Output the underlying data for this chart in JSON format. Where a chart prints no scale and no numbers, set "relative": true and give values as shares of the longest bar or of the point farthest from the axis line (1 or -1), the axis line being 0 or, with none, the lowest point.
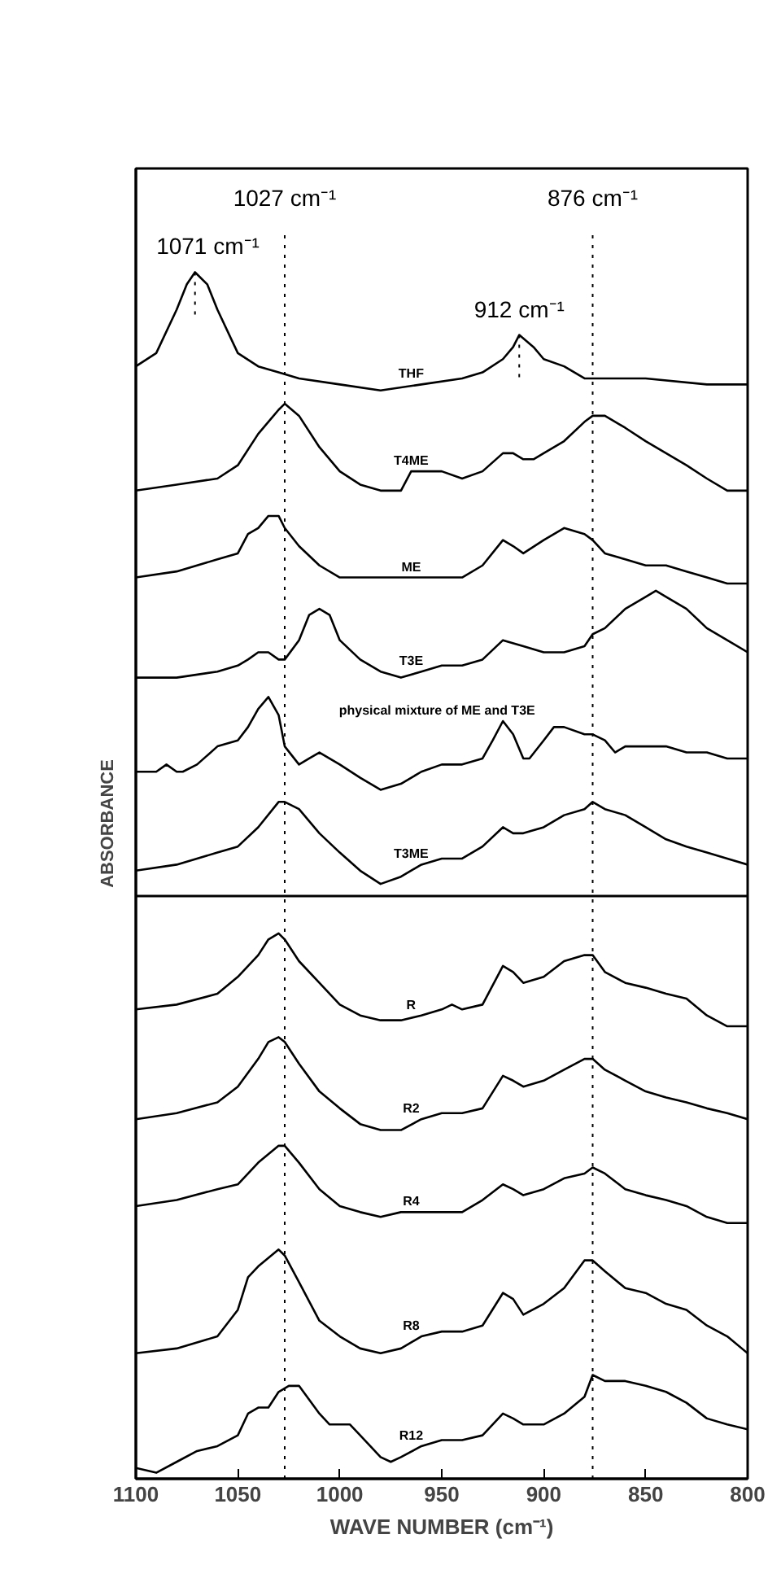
{
  "chart_data": {
    "type": "line",
    "relative": true,
    "xlabel": "WAVE NUMBER (cm⁻¹)",
    "ylabel": "ABSORBANCE",
    "xlim": [
      1100,
      800
    ],
    "xticks": [
      1100,
      1050,
      1000,
      950,
      900,
      850,
      800
    ],
    "series": [
      {
        "name": "THF",
        "color": "#000000",
        "x": [
          1100,
          1090,
          1080,
          1075,
          1071,
          1065,
          1060,
          1050,
          1040,
          1030,
          1020,
          1000,
          980,
          960,
          940,
          930,
          920,
          915,
          912,
          905,
          900,
          890,
          880,
          870,
          850,
          820,
          800
        ],
        "values": [
          0.922,
          0.933,
          0.969,
          0.99,
          1.0,
          0.99,
          0.969,
          0.933,
          0.922,
          0.917,
          0.912,
          0.907,
          0.902,
          0.907,
          0.912,
          0.917,
          0.928,
          0.938,
          0.948,
          0.938,
          0.928,
          0.922,
          0.912,
          0.912,
          0.912,
          0.907,
          0.907
        ]
      },
      {
        "name": "T4ME",
        "color": "#000000",
        "x": [
          1100,
          1080,
          1060,
          1050,
          1040,
          1030,
          1027,
          1020,
          1010,
          1000,
          990,
          980,
          970,
          965,
          960,
          950,
          940,
          930,
          920,
          915,
          910,
          905,
          900,
          890,
          880,
          876,
          870,
          860,
          850,
          840,
          830,
          820,
          810,
          800
        ],
        "values": [
          0.819,
          0.824,
          0.829,
          0.84,
          0.866,
          0.886,
          0.891,
          0.881,
          0.855,
          0.835,
          0.824,
          0.819,
          0.819,
          0.835,
          0.835,
          0.835,
          0.829,
          0.835,
          0.85,
          0.85,
          0.845,
          0.845,
          0.85,
          0.86,
          0.876,
          0.881,
          0.881,
          0.871,
          0.86,
          0.85,
          0.84,
          0.829,
          0.819,
          0.819
        ]
      },
      {
        "name": "ME",
        "color": "#000000",
        "x": [
          1100,
          1080,
          1060,
          1050,
          1045,
          1040,
          1035,
          1030,
          1027,
          1020,
          1010,
          1000,
          980,
          960,
          940,
          930,
          920,
          915,
          910,
          900,
          890,
          880,
          876,
          870,
          860,
          850,
          840,
          830,
          820,
          810,
          800
        ],
        "values": [
          0.747,
          0.752,
          0.762,
          0.767,
          0.783,
          0.788,
          0.798,
          0.798,
          0.788,
          0.773,
          0.757,
          0.747,
          0.747,
          0.747,
          0.747,
          0.757,
          0.778,
          0.773,
          0.767,
          0.778,
          0.788,
          0.783,
          0.778,
          0.767,
          0.762,
          0.757,
          0.757,
          0.752,
          0.747,
          0.742,
          0.742
        ]
      },
      {
        "name": "T3E",
        "color": "#000000",
        "x": [
          1100,
          1080,
          1060,
          1050,
          1045,
          1040,
          1035,
          1030,
          1027,
          1020,
          1015,
          1010,
          1005,
          1000,
          990,
          980,
          970,
          960,
          950,
          940,
          930,
          920,
          910,
          900,
          890,
          880,
          876,
          870,
          860,
          850,
          845,
          840,
          830,
          820,
          810,
          800
        ],
        "values": [
          0.664,
          0.664,
          0.669,
          0.674,
          0.679,
          0.685,
          0.685,
          0.679,
          0.679,
          0.695,
          0.716,
          0.721,
          0.716,
          0.695,
          0.679,
          0.669,
          0.664,
          0.669,
          0.674,
          0.674,
          0.679,
          0.695,
          0.69,
          0.685,
          0.685,
          0.69,
          0.7,
          0.705,
          0.721,
          0.731,
          0.736,
          0.731,
          0.721,
          0.705,
          0.695,
          0.685
        ]
      },
      {
        "name": "physical mixture of ME and T3E",
        "color": "#000000",
        "x": [
          1100,
          1090,
          1085,
          1080,
          1077,
          1070,
          1060,
          1050,
          1045,
          1040,
          1035,
          1030,
          1027,
          1020,
          1015,
          1010,
          1000,
          990,
          980,
          970,
          960,
          950,
          940,
          930,
          925,
          920,
          915,
          910,
          907,
          900,
          895,
          890,
          880,
          876,
          870,
          865,
          860,
          850,
          840,
          830,
          820,
          810,
          800
        ],
        "values": [
          0.586,
          0.586,
          0.592,
          0.586,
          0.586,
          0.592,
          0.607,
          0.612,
          0.623,
          0.638,
          0.648,
          0.633,
          0.607,
          0.592,
          0.597,
          0.602,
          0.592,
          0.581,
          0.571,
          0.576,
          0.586,
          0.592,
          0.592,
          0.597,
          0.612,
          0.628,
          0.617,
          0.597,
          0.597,
          0.612,
          0.623,
          0.623,
          0.617,
          0.617,
          0.612,
          0.602,
          0.607,
          0.607,
          0.607,
          0.602,
          0.602,
          0.597,
          0.597
        ]
      },
      {
        "name": "T3ME",
        "color": "#000000",
        "x": [
          1100,
          1080,
          1060,
          1050,
          1040,
          1030,
          1027,
          1020,
          1010,
          1000,
          990,
          980,
          970,
          960,
          950,
          940,
          930,
          920,
          915,
          910,
          900,
          890,
          880,
          876,
          870,
          860,
          850,
          840,
          830,
          820,
          810,
          800
        ],
        "values": [
          0.504,
          0.509,
          0.519,
          0.524,
          0.54,
          0.561,
          0.561,
          0.555,
          0.535,
          0.519,
          0.504,
          0.493,
          0.499,
          0.509,
          0.514,
          0.514,
          0.524,
          0.54,
          0.535,
          0.535,
          0.54,
          0.55,
          0.555,
          0.561,
          0.555,
          0.55,
          0.54,
          0.53,
          0.524,
          0.519,
          0.514,
          0.509
        ]
      },
      {
        "name": "R",
        "color": "#000000",
        "x": [
          1100,
          1080,
          1060,
          1050,
          1040,
          1035,
          1030,
          1027,
          1020,
          1010,
          1000,
          990,
          980,
          970,
          960,
          950,
          945,
          940,
          930,
          920,
          915,
          910,
          900,
          890,
          880,
          876,
          870,
          860,
          850,
          840,
          830,
          820,
          810,
          800
        ],
        "values": [
          0.389,
          0.393,
          0.402,
          0.416,
          0.434,
          0.447,
          0.452,
          0.447,
          0.429,
          0.411,
          0.393,
          0.384,
          0.38,
          0.38,
          0.384,
          0.389,
          0.393,
          0.389,
          0.393,
          0.425,
          0.42,
          0.411,
          0.416,
          0.429,
          0.434,
          0.434,
          0.42,
          0.411,
          0.407,
          0.402,
          0.398,
          0.384,
          0.375,
          0.375
        ]
      },
      {
        "name": "R2",
        "color": "#000000",
        "x": [
          1100,
          1080,
          1060,
          1050,
          1040,
          1035,
          1030,
          1027,
          1020,
          1010,
          1000,
          990,
          980,
          970,
          960,
          950,
          940,
          930,
          920,
          915,
          910,
          900,
          890,
          880,
          876,
          870,
          860,
          850,
          840,
          830,
          820,
          810,
          800
        ],
        "values": [
          0.298,
          0.303,
          0.312,
          0.325,
          0.348,
          0.362,
          0.366,
          0.362,
          0.344,
          0.321,
          0.307,
          0.294,
          0.289,
          0.289,
          0.298,
          0.303,
          0.303,
          0.307,
          0.334,
          0.33,
          0.325,
          0.33,
          0.339,
          0.348,
          0.348,
          0.339,
          0.33,
          0.321,
          0.316,
          0.312,
          0.307,
          0.303,
          0.298
        ]
      },
      {
        "name": "R4",
        "color": "#000000",
        "x": [
          1100,
          1080,
          1060,
          1050,
          1040,
          1030,
          1027,
          1020,
          1010,
          1000,
          990,
          980,
          970,
          960,
          950,
          940,
          930,
          920,
          915,
          910,
          900,
          890,
          880,
          876,
          870,
          860,
          850,
          840,
          830,
          820,
          810,
          800
        ],
        "values": [
          0.226,
          0.231,
          0.24,
          0.244,
          0.262,
          0.276,
          0.276,
          0.262,
          0.24,
          0.226,
          0.221,
          0.217,
          0.221,
          0.221,
          0.221,
          0.221,
          0.231,
          0.244,
          0.24,
          0.235,
          0.24,
          0.249,
          0.253,
          0.258,
          0.253,
          0.24,
          0.235,
          0.231,
          0.226,
          0.217,
          0.212,
          0.212
        ]
      },
      {
        "name": "R8",
        "color": "#000000",
        "x": [
          1100,
          1080,
          1060,
          1050,
          1045,
          1040,
          1030,
          1027,
          1020,
          1010,
          1000,
          990,
          980,
          970,
          960,
          950,
          940,
          930,
          920,
          915,
          910,
          900,
          890,
          880,
          876,
          870,
          860,
          850,
          840,
          830,
          820,
          810,
          800
        ],
        "values": [
          0.104,
          0.108,
          0.118,
          0.14,
          0.167,
          0.176,
          0.19,
          0.185,
          0.163,
          0.131,
          0.118,
          0.108,
          0.104,
          0.108,
          0.118,
          0.122,
          0.122,
          0.127,
          0.154,
          0.149,
          0.136,
          0.145,
          0.158,
          0.181,
          0.181,
          0.172,
          0.158,
          0.154,
          0.145,
          0.14,
          0.127,
          0.118,
          0.104
        ]
      },
      {
        "name": "R12",
        "color": "#000000",
        "x": [
          1100,
          1090,
          1080,
          1070,
          1060,
          1050,
          1045,
          1040,
          1035,
          1030,
          1025,
          1020,
          1010,
          1005,
          1000,
          995,
          990,
          980,
          975,
          970,
          960,
          950,
          945,
          940,
          930,
          920,
          915,
          910,
          900,
          890,
          880,
          876,
          870,
          860,
          850,
          840,
          830,
          820,
          810,
          800
        ],
        "values": [
          0.009,
          0.005,
          0.014,
          0.023,
          0.027,
          0.036,
          0.054,
          0.059,
          0.059,
          0.072,
          0.077,
          0.077,
          0.054,
          0.045,
          0.045,
          0.045,
          0.036,
          0.018,
          0.014,
          0.018,
          0.027,
          0.032,
          0.032,
          0.032,
          0.036,
          0.054,
          0.05,
          0.045,
          0.045,
          0.054,
          0.068,
          0.086,
          0.081,
          0.081,
          0.077,
          0.072,
          0.063,
          0.05,
          0.045,
          0.041
        ]
      }
    ],
    "ref_lines": [
      {
        "axis": "x",
        "value": 1027,
        "label": "1027 cm⁻¹",
        "line_style": "dotted"
      },
      {
        "axis": "x",
        "value": 876,
        "label": "876 cm⁻¹",
        "line_style": "dotted"
      },
      {
        "axis": "y",
        "value": 0.483,
        "label": null,
        "line_style": "solid"
      }
    ],
    "annotations": [
      {
        "text": "1071 cm⁻¹",
        "x": 1071,
        "y": 1.0
      },
      {
        "text": "912 cm⁻¹",
        "x": 912,
        "y": 0.948
      }
    ]
  }
}
